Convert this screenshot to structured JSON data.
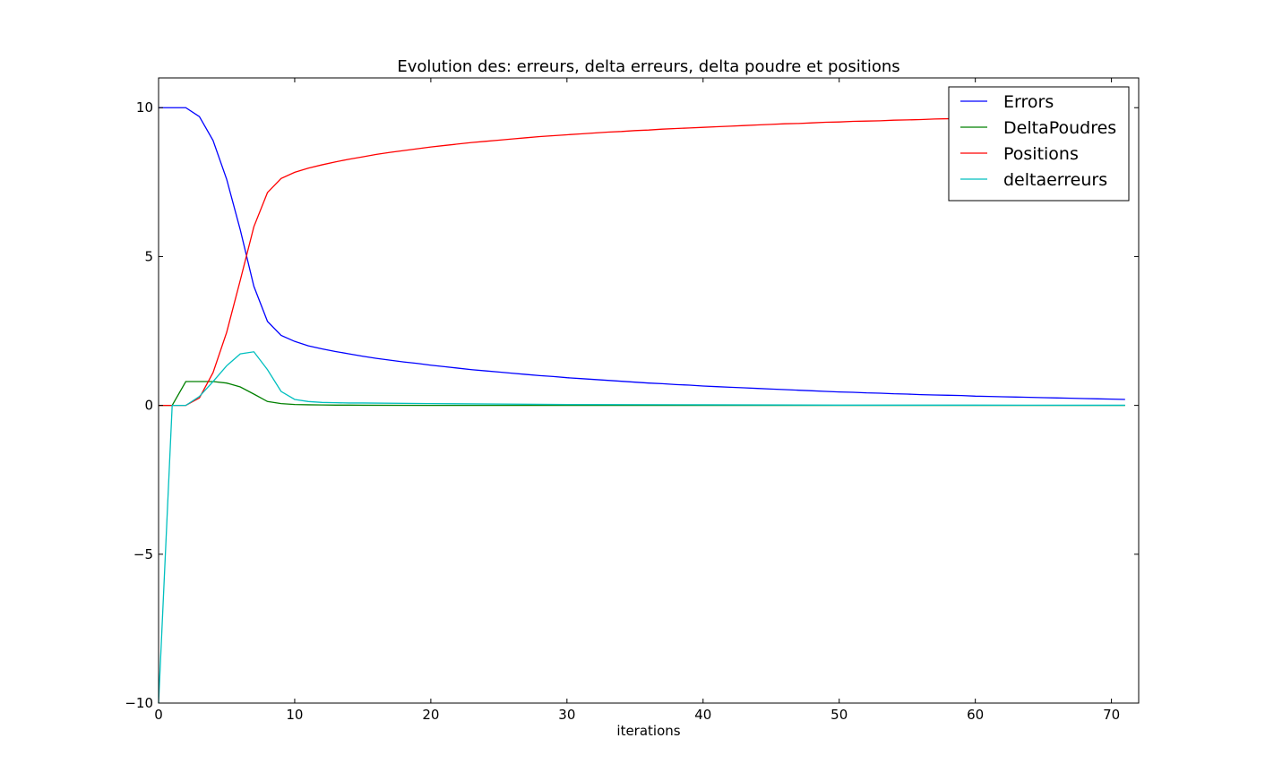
{
  "chart_data": {
    "type": "line",
    "title": "Evolution des: erreurs, delta erreurs, delta poudre et positions",
    "xlabel": "iterations",
    "ylabel": "",
    "xlim": [
      0,
      72
    ],
    "ylim": [
      -10,
      11
    ],
    "xticks": [
      0,
      10,
      20,
      30,
      40,
      50,
      60,
      70
    ],
    "yticks": [
      -10,
      -5,
      0,
      5,
      10
    ],
    "grid": false,
    "legend_position": "top-right",
    "series": [
      {
        "name": "Errors",
        "color": "#0000ff",
        "x": [
          0,
          1,
          2,
          3,
          4,
          5,
          6,
          7,
          8,
          9,
          10,
          11,
          12,
          13,
          14,
          15,
          16,
          17,
          18,
          19,
          20,
          21,
          22,
          23,
          24,
          25,
          26,
          27,
          28,
          29,
          30,
          31,
          32,
          33,
          34,
          35,
          36,
          37,
          38,
          39,
          40,
          41,
          42,
          43,
          44,
          45,
          46,
          47,
          48,
          49,
          50,
          51,
          52,
          53,
          54,
          55,
          56,
          57,
          58,
          59,
          60,
          61,
          62,
          63,
          64,
          65,
          66,
          67,
          68,
          69,
          70,
          71
        ],
        "y": [
          10,
          10,
          10,
          9.7,
          8.9,
          7.6,
          5.9,
          4.0,
          2.82,
          2.35,
          2.15,
          2.0,
          1.9,
          1.81,
          1.73,
          1.65,
          1.58,
          1.52,
          1.46,
          1.41,
          1.35,
          1.3,
          1.25,
          1.2,
          1.16,
          1.12,
          1.08,
          1.04,
          1.0,
          0.97,
          0.93,
          0.9,
          0.87,
          0.84,
          0.81,
          0.78,
          0.75,
          0.73,
          0.7,
          0.68,
          0.65,
          0.63,
          0.61,
          0.59,
          0.57,
          0.55,
          0.53,
          0.51,
          0.49,
          0.47,
          0.45,
          0.44,
          0.42,
          0.41,
          0.39,
          0.38,
          0.36,
          0.35,
          0.34,
          0.33,
          0.31,
          0.3,
          0.29,
          0.28,
          0.27,
          0.26,
          0.25,
          0.24,
          0.23,
          0.22,
          0.21,
          0.2
        ]
      },
      {
        "name": "DeltaPoudres",
        "color": "#008000",
        "x": [
          0,
          1,
          2,
          3,
          4,
          5,
          6,
          7,
          8,
          9,
          10,
          11,
          12,
          13,
          14,
          15,
          20,
          30,
          40,
          50,
          60,
          71
        ],
        "y": [
          0,
          0,
          0.8,
          0.8,
          0.8,
          0.75,
          0.62,
          0.38,
          0.13,
          0.06,
          0.03,
          0.02,
          0.015,
          0.01,
          0.01,
          0.005,
          0,
          0,
          0,
          0,
          0,
          0
        ]
      },
      {
        "name": "Positions",
        "color": "#ff0000",
        "x": [
          0,
          1,
          2,
          3,
          4,
          5,
          6,
          7,
          8,
          9,
          10,
          11,
          12,
          13,
          14,
          15,
          16,
          17,
          18,
          19,
          20,
          21,
          22,
          23,
          24,
          25,
          26,
          27,
          28,
          29,
          30,
          31,
          32,
          33,
          34,
          35,
          36,
          37,
          38,
          39,
          40,
          41,
          42,
          43,
          44,
          45,
          46,
          47,
          48,
          49,
          50,
          51,
          52,
          53,
          54,
          55,
          56,
          57,
          58,
          59,
          60,
          61,
          62,
          63,
          64,
          65,
          66,
          67,
          68,
          69,
          70,
          71
        ],
        "y": [
          0,
          0,
          0,
          0.25,
          1.1,
          2.45,
          4.2,
          6.0,
          7.15,
          7.62,
          7.83,
          7.97,
          8.08,
          8.18,
          8.27,
          8.35,
          8.43,
          8.5,
          8.56,
          8.62,
          8.68,
          8.73,
          8.78,
          8.83,
          8.87,
          8.91,
          8.95,
          8.99,
          9.03,
          9.06,
          9.09,
          9.12,
          9.15,
          9.18,
          9.2,
          9.23,
          9.25,
          9.28,
          9.3,
          9.32,
          9.34,
          9.36,
          9.38,
          9.4,
          9.42,
          9.44,
          9.46,
          9.47,
          9.49,
          9.51,
          9.52,
          9.54,
          9.55,
          9.56,
          9.58,
          9.59,
          9.6,
          9.62,
          9.63,
          9.64,
          9.65,
          9.66,
          9.67,
          9.68,
          9.69,
          9.7,
          9.71,
          9.72,
          9.73,
          9.74,
          9.75,
          9.76
        ]
      },
      {
        "name": "deltaerreurs",
        "color": "#00bfbf",
        "x": [
          0,
          1,
          2,
          3,
          4,
          5,
          6,
          7,
          8,
          9,
          10,
          11,
          12,
          13,
          14,
          15,
          20,
          30,
          40,
          50,
          60,
          71
        ],
        "y": [
          -10,
          0,
          0,
          0.3,
          0.8,
          1.33,
          1.73,
          1.8,
          1.2,
          0.47,
          0.2,
          0.13,
          0.1,
          0.09,
          0.08,
          0.08,
          0.06,
          0.03,
          0.02,
          0.01,
          0.01,
          0.005
        ]
      }
    ]
  }
}
